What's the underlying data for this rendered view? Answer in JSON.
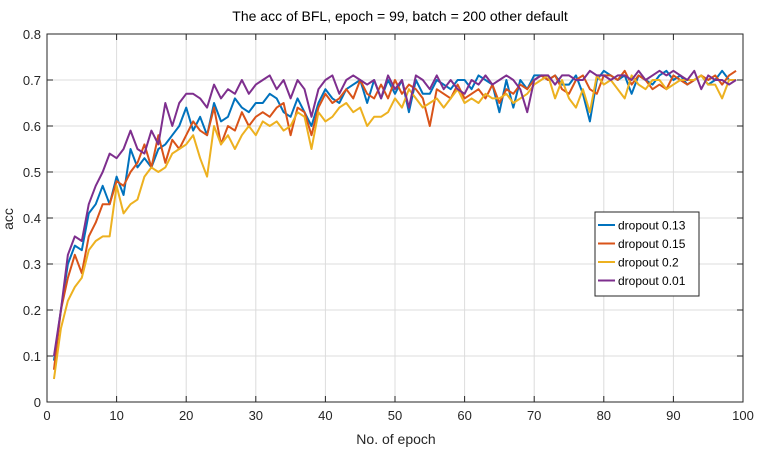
{
  "chart_data": {
    "type": "line",
    "title": "The acc of BFL, epoch = 99, batch = 200 other default",
    "xlabel": "No. of epoch",
    "ylabel": "acc",
    "xlim": [
      0,
      100
    ],
    "ylim": [
      0,
      0.8
    ],
    "x_ticks": [
      "0",
      "10",
      "20",
      "30",
      "40",
      "50",
      "60",
      "70",
      "80",
      "90",
      "100"
    ],
    "y_ticks": [
      "0",
      "0.1",
      "0.2",
      "0.3",
      "0.4",
      "0.5",
      "0.6",
      "0.7",
      "0.8"
    ],
    "grid": true,
    "legend_position": "middle-right",
    "x": [
      1,
      2,
      3,
      4,
      5,
      6,
      7,
      8,
      9,
      10,
      11,
      12,
      13,
      14,
      15,
      16,
      17,
      18,
      19,
      20,
      21,
      22,
      23,
      24,
      25,
      26,
      27,
      28,
      29,
      30,
      31,
      32,
      33,
      34,
      35,
      36,
      37,
      38,
      39,
      40,
      41,
      42,
      43,
      44,
      45,
      46,
      47,
      48,
      49,
      50,
      51,
      52,
      53,
      54,
      55,
      56,
      57,
      58,
      59,
      60,
      61,
      62,
      63,
      64,
      65,
      66,
      67,
      68,
      69,
      70,
      71,
      72,
      73,
      74,
      75,
      76,
      77,
      78,
      79,
      80,
      81,
      82,
      83,
      84,
      85,
      86,
      87,
      88,
      89,
      90,
      91,
      92,
      93,
      94,
      95,
      96,
      97,
      98,
      99
    ],
    "series": [
      {
        "name": "dropout 0.13",
        "color": "#0072BD",
        "values": [
          0.09,
          0.2,
          0.3,
          0.34,
          0.33,
          0.41,
          0.43,
          0.47,
          0.43,
          0.49,
          0.45,
          0.55,
          0.51,
          0.53,
          0.51,
          0.55,
          0.56,
          0.58,
          0.6,
          0.64,
          0.59,
          0.62,
          0.58,
          0.65,
          0.61,
          0.62,
          0.66,
          0.64,
          0.63,
          0.65,
          0.65,
          0.67,
          0.66,
          0.63,
          0.62,
          0.66,
          0.63,
          0.6,
          0.65,
          0.68,
          0.66,
          0.65,
          0.68,
          0.69,
          0.7,
          0.65,
          0.7,
          0.66,
          0.7,
          0.67,
          0.7,
          0.63,
          0.7,
          0.67,
          0.67,
          0.7,
          0.69,
          0.68,
          0.7,
          0.7,
          0.68,
          0.71,
          0.7,
          0.69,
          0.63,
          0.7,
          0.64,
          0.7,
          0.68,
          0.71,
          0.71,
          0.7,
          0.71,
          0.69,
          0.69,
          0.71,
          0.67,
          0.61,
          0.7,
          0.72,
          0.71,
          0.7,
          0.71,
          0.67,
          0.71,
          0.7,
          0.69,
          0.71,
          0.72,
          0.7,
          0.71,
          0.69,
          0.7,
          0.71,
          0.69,
          0.7,
          0.72,
          0.7,
          0.7
        ]
      },
      {
        "name": "dropout 0.15",
        "color": "#D95319",
        "values": [
          0.07,
          0.2,
          0.27,
          0.32,
          0.28,
          0.36,
          0.39,
          0.43,
          0.43,
          0.48,
          0.47,
          0.5,
          0.52,
          0.56,
          0.51,
          0.58,
          0.52,
          0.57,
          0.55,
          0.58,
          0.61,
          0.59,
          0.58,
          0.64,
          0.56,
          0.6,
          0.59,
          0.63,
          0.6,
          0.62,
          0.63,
          0.62,
          0.64,
          0.65,
          0.58,
          0.64,
          0.63,
          0.58,
          0.64,
          0.67,
          0.65,
          0.66,
          0.68,
          0.66,
          0.7,
          0.67,
          0.66,
          0.69,
          0.66,
          0.7,
          0.67,
          0.69,
          0.68,
          0.66,
          0.6,
          0.68,
          0.67,
          0.66,
          0.69,
          0.66,
          0.67,
          0.68,
          0.66,
          0.69,
          0.65,
          0.68,
          0.67,
          0.69,
          0.68,
          0.7,
          0.71,
          0.7,
          0.71,
          0.68,
          0.67,
          0.7,
          0.71,
          0.68,
          0.67,
          0.71,
          0.71,
          0.7,
          0.72,
          0.69,
          0.71,
          0.7,
          0.68,
          0.69,
          0.68,
          0.71,
          0.7,
          0.69,
          0.7,
          0.71,
          0.7,
          0.71,
          0.69,
          0.71,
          0.72
        ]
      },
      {
        "name": "dropout 0.2",
        "color": "#EDB120",
        "values": [
          0.05,
          0.16,
          0.22,
          0.25,
          0.27,
          0.33,
          0.35,
          0.36,
          0.36,
          0.47,
          0.41,
          0.43,
          0.44,
          0.49,
          0.51,
          0.5,
          0.51,
          0.54,
          0.55,
          0.56,
          0.58,
          0.53,
          0.49,
          0.6,
          0.56,
          0.58,
          0.55,
          0.58,
          0.6,
          0.58,
          0.61,
          0.6,
          0.61,
          0.59,
          0.6,
          0.63,
          0.62,
          0.55,
          0.63,
          0.61,
          0.62,
          0.64,
          0.65,
          0.63,
          0.64,
          0.6,
          0.62,
          0.62,
          0.63,
          0.66,
          0.64,
          0.68,
          0.66,
          0.64,
          0.65,
          0.66,
          0.64,
          0.66,
          0.68,
          0.65,
          0.66,
          0.65,
          0.67,
          0.66,
          0.66,
          0.67,
          0.65,
          0.66,
          0.67,
          0.69,
          0.7,
          0.71,
          0.66,
          0.7,
          0.66,
          0.64,
          0.68,
          0.63,
          0.71,
          0.69,
          0.7,
          0.68,
          0.66,
          0.71,
          0.69,
          0.68,
          0.7,
          0.7,
          0.68,
          0.69,
          0.7,
          0.7,
          0.7,
          0.71,
          0.69,
          0.69,
          0.66,
          0.7,
          0.7
        ]
      },
      {
        "name": "dropout 0.01",
        "color": "#7E2F8E",
        "values": [
          0.1,
          0.2,
          0.32,
          0.36,
          0.35,
          0.43,
          0.47,
          0.5,
          0.54,
          0.53,
          0.55,
          0.59,
          0.55,
          0.54,
          0.59,
          0.56,
          0.65,
          0.6,
          0.65,
          0.67,
          0.67,
          0.66,
          0.64,
          0.69,
          0.66,
          0.68,
          0.67,
          0.7,
          0.67,
          0.69,
          0.7,
          0.71,
          0.68,
          0.7,
          0.66,
          0.7,
          0.68,
          0.62,
          0.68,
          0.7,
          0.71,
          0.67,
          0.7,
          0.71,
          0.7,
          0.69,
          0.7,
          0.66,
          0.71,
          0.68,
          0.7,
          0.64,
          0.71,
          0.7,
          0.68,
          0.71,
          0.68,
          0.7,
          0.68,
          0.67,
          0.7,
          0.69,
          0.71,
          0.69,
          0.7,
          0.71,
          0.7,
          0.68,
          0.63,
          0.7,
          0.71,
          0.71,
          0.69,
          0.71,
          0.71,
          0.7,
          0.7,
          0.72,
          0.71,
          0.71,
          0.7,
          0.71,
          0.71,
          0.7,
          0.72,
          0.7,
          0.71,
          0.72,
          0.71,
          0.72,
          0.71,
          0.7,
          0.72,
          0.68,
          0.71,
          0.7,
          0.7,
          0.69,
          0.7
        ]
      }
    ]
  }
}
